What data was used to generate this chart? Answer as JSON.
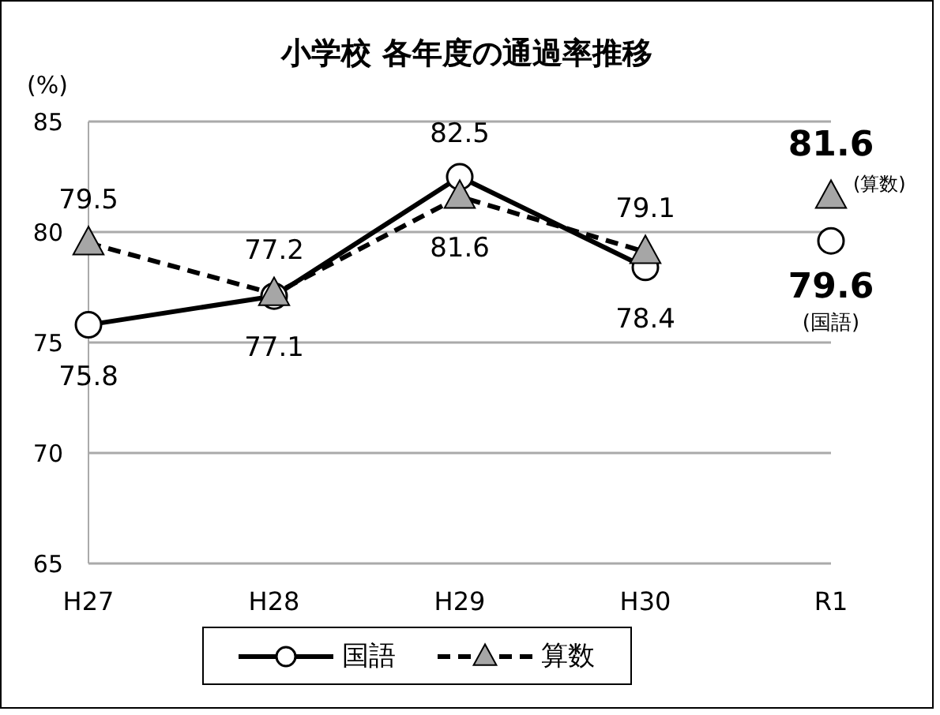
{
  "chart_data": {
    "type": "line",
    "title": "小学校 各年度の通過率推移",
    "ylabel": "(%)",
    "categories": [
      "H27",
      "H28",
      "H29",
      "H30",
      "R1"
    ],
    "series": [
      {
        "name": "国語",
        "type": "line",
        "color": "#000000",
        "marker": "circle",
        "line_style": "solid",
        "values": [
          75.8,
          77.1,
          82.5,
          78.4,
          null
        ]
      },
      {
        "name": "算数",
        "type": "line",
        "color": "#000000",
        "marker": "triangle",
        "line_style": "dashed",
        "values": [
          79.5,
          77.2,
          81.6,
          79.1,
          null
        ]
      },
      {
        "type": "scatter",
        "color": "#a6a6a6",
        "marker": "triangle",
        "values": [
          null,
          null,
          null,
          null,
          81.6
        ],
        "value_labels": [
          null,
          null,
          null,
          null,
          "81.6"
        ]
      },
      {
        "type": "scatter",
        "color": "#000000",
        "marker": "circle",
        "values": [
          null,
          null,
          null,
          null,
          79.6
        ],
        "value_labels": [
          null,
          null,
          null,
          null,
          "79.6"
        ]
      }
    ],
    "annotations": [
      "(算数)",
      "(国語)"
    ],
    "data_labels": true,
    "ylim": [
      65,
      85
    ],
    "yticks": [
      65,
      70,
      75,
      80,
      85
    ],
    "grid": "y",
    "legend": "bottom"
  }
}
